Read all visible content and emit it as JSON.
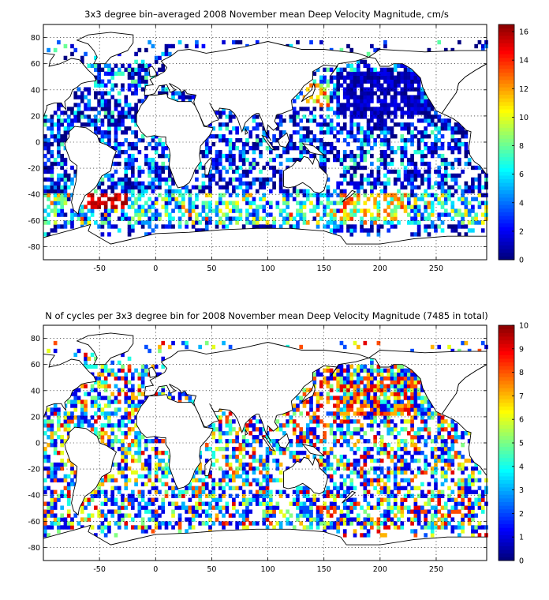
{
  "figure": {
    "panels": [
      {
        "id": "velocity",
        "title": "3x3 degree bin–averaged 2008 November mean Deep Velocity Magnitude, cm/s",
        "xticks": [
          "-50",
          "0",
          "50",
          "100",
          "150",
          "200",
          "250"
        ],
        "yticks": [
          "80",
          "60",
          "40",
          "20",
          "0",
          "-20",
          "-40",
          "-60",
          "-80"
        ],
        "colorbar_ticks": [
          "16",
          "14",
          "12",
          "10",
          "8",
          "6",
          "4",
          "2",
          "0"
        ]
      },
      {
        "id": "cycles",
        "title": "N of cycles per 3x3 degree bin for 2008 November mean Deep Velocity Magnitude (7485 in total)",
        "xticks": [
          "-50",
          "0",
          "50",
          "100",
          "150",
          "200",
          "250"
        ],
        "yticks": [
          "80",
          "60",
          "40",
          "20",
          "0",
          "-20",
          "-40",
          "-60",
          "-80"
        ],
        "colorbar_ticks": [
          "10",
          "9",
          "8",
          "7",
          "6",
          "5",
          "4",
          "3",
          "2",
          "1",
          "0"
        ]
      }
    ]
  },
  "chart_data": [
    {
      "type": "heatmap",
      "title": "3x3 degree bin–averaged 2008 November mean Deep Velocity Magnitude, cm/s",
      "xlim": [
        -100,
        295
      ],
      "ylim": [
        -90,
        90
      ],
      "x_ticks": [
        -50,
        0,
        50,
        100,
        150,
        200,
        250
      ],
      "y_ticks": [
        -80,
        -60,
        -40,
        -20,
        0,
        20,
        40,
        60,
        80
      ],
      "grid": true,
      "bin_size_deg": 3,
      "colorbar": {
        "min": 0,
        "max": 16.5,
        "ticks": [
          0,
          2,
          4,
          6,
          8,
          10,
          12,
          14,
          16
        ],
        "colormap": "jet",
        "placement": "right"
      },
      "notable_regions": [
        {
          "lon": -45,
          "lat": -45,
          "value": 16
        },
        {
          "lon": 180,
          "lat": -55,
          "value": 13
        },
        {
          "lon": 140,
          "lat": 37,
          "value": 12
        },
        {
          "lon": 200,
          "lat": 30,
          "value": 1
        }
      ]
    },
    {
      "type": "heatmap",
      "title": "N of cycles per 3x3 degree bin for 2008 November mean Deep Velocity Magnitude (7485 in total)",
      "xlim": [
        -100,
        295
      ],
      "ylim": [
        -90,
        90
      ],
      "x_ticks": [
        -50,
        0,
        50,
        100,
        150,
        200,
        250
      ],
      "y_ticks": [
        -80,
        -60,
        -40,
        -20,
        0,
        20,
        40,
        60,
        80
      ],
      "grid": true,
      "bin_size_deg": 3,
      "total_cycles": 7485,
      "colorbar": {
        "min": 0,
        "max": 10,
        "ticks": [
          0,
          1,
          2,
          3,
          4,
          5,
          6,
          7,
          8,
          9,
          10
        ],
        "colormap": "jet",
        "placement": "right"
      }
    }
  ]
}
